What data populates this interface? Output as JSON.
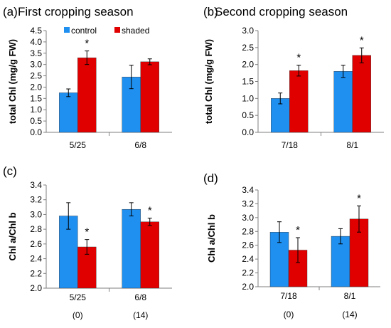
{
  "figure": {
    "legend": {
      "control": "control",
      "shaded": "shaded"
    },
    "colors": {
      "control": "#1f8ff0",
      "shaded": "#e00000",
      "axis": "#7f7f7f",
      "text": "#000000"
    }
  },
  "chart_data": [
    {
      "panel_label": "(a)",
      "title": "First cropping season",
      "type": "bar",
      "ylabel": "total Chl (mg/g FW)",
      "ylim": [
        0,
        4.5
      ],
      "yticks": [
        "0.0",
        "0.5",
        "1.0",
        "1.5",
        "2.0",
        "2.5",
        "3.0",
        "3.5",
        "4.0",
        "4.5"
      ],
      "categories": [
        "5/25",
        "6/8"
      ],
      "series": [
        {
          "name": "control",
          "values": [
            1.75,
            2.45
          ],
          "errors": [
            0.17,
            0.52
          ]
        },
        {
          "name": "shaded",
          "values": [
            3.3,
            3.12
          ],
          "errors": [
            0.3,
            0.13
          ]
        }
      ],
      "significance": [
        "*",
        ""
      ]
    },
    {
      "panel_label": "(b)",
      "title": "Second cropping season",
      "type": "bar",
      "ylabel": "total Chl (mg/g FW)",
      "ylim": [
        0,
        3.0
      ],
      "yticks": [
        "0.0",
        "0.5",
        "1.0",
        "1.5",
        "2.0",
        "2.5",
        "3.0"
      ],
      "categories": [
        "7/18",
        "8/1"
      ],
      "series": [
        {
          "name": "control",
          "values": [
            1.0,
            1.8
          ],
          "errors": [
            0.16,
            0.18
          ]
        },
        {
          "name": "shaded",
          "values": [
            1.82,
            2.27
          ],
          "errors": [
            0.16,
            0.22
          ]
        }
      ],
      "significance": [
        "*",
        "*"
      ]
    },
    {
      "panel_label": "(c)",
      "title": "",
      "type": "bar",
      "ylabel": "Chl a/Chl b",
      "ylim": [
        2.0,
        3.4
      ],
      "yticks": [
        "2.0",
        "2.2",
        "2.4",
        "2.6",
        "2.8",
        "3.0",
        "3.2",
        "3.4"
      ],
      "categories": [
        "5/25",
        "6/8"
      ],
      "sublabels": [
        "(0)",
        "(14)"
      ],
      "series": [
        {
          "name": "control",
          "values": [
            2.98,
            3.07
          ],
          "errors": [
            0.18,
            0.09
          ]
        },
        {
          "name": "shaded",
          "values": [
            2.56,
            2.9
          ],
          "errors": [
            0.1,
            0.05
          ]
        }
      ],
      "significance": [
        "*",
        "*"
      ]
    },
    {
      "panel_label": "(d)",
      "title": "",
      "type": "bar",
      "ylabel": "Chl a/Chl b",
      "ylim": [
        2.0,
        3.4
      ],
      "yticks": [
        "2.0",
        "2.2",
        "2.4",
        "2.6",
        "2.8",
        "3.0",
        "3.2",
        "3.4"
      ],
      "categories": [
        "7/18",
        "8/1"
      ],
      "sublabels": [
        "(0)",
        "(14)"
      ],
      "series": [
        {
          "name": "control",
          "values": [
            2.79,
            2.73
          ],
          "errors": [
            0.15,
            0.11
          ]
        },
        {
          "name": "shaded",
          "values": [
            2.53,
            2.98
          ],
          "errors": [
            0.18,
            0.19
          ]
        }
      ],
      "significance": [
        "*",
        "*"
      ]
    }
  ]
}
